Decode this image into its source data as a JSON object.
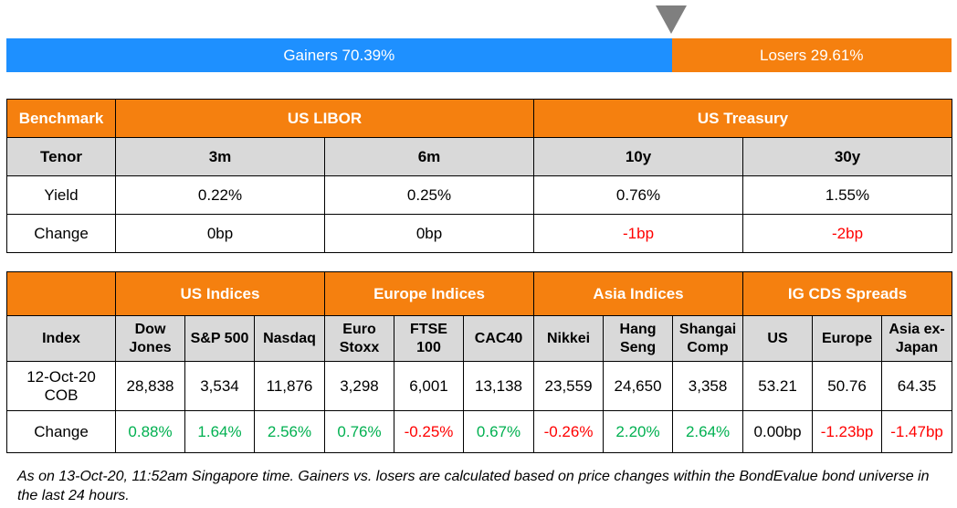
{
  "breadth": {
    "gainers_label": "Gainers 70.39%",
    "losers_label": "Losers 29.61%",
    "gainers_share": 0.7039,
    "colors": {
      "gainers": "#1e90ff",
      "losers": "#f5800f",
      "marker": "#7f7f7f"
    },
    "marker_icon": "triangle-down-icon"
  },
  "rates": {
    "header": {
      "benchmark": "Benchmark",
      "libor": "US LIBOR",
      "treasury": "US Treasury"
    },
    "tenor_label": "Tenor",
    "tenors": [
      "3m",
      "6m",
      "10y",
      "30y"
    ],
    "yield_label": "Yield",
    "yields": [
      "0.22%",
      "0.25%",
      "0.76%",
      "1.55%"
    ],
    "change_label": "Change",
    "changes": [
      "0bp",
      "0bp",
      "-1bp",
      "-2bp"
    ]
  },
  "indices": {
    "groups": [
      "US Indices",
      "Europe Indices",
      "Asia Indices",
      "IG CDS Spreads"
    ],
    "index_label": "Index",
    "names": [
      "Dow Jones",
      "S&P 500",
      "Nasdaq",
      "Euro Stoxx",
      "FTSE 100",
      "CAC40",
      "Nikkei",
      "Hang Seng",
      "Shangai Comp",
      "US",
      "Europe",
      "Asia ex-Japan"
    ],
    "date_label": "12-Oct-20 COB",
    "values": [
      "28,838",
      "3,534",
      "11,876",
      "3,298",
      "6,001",
      "13,138",
      "23,559",
      "24,650",
      "3,358",
      "53.21",
      "50.76",
      "64.35"
    ],
    "change_label": "Change",
    "changes": [
      "0.88%",
      "1.64%",
      "2.56%",
      "0.76%",
      "-0.25%",
      "0.67%",
      "-0.26%",
      "2.20%",
      "2.64%",
      "0.00bp",
      "-1.23bp",
      "-1.47bp"
    ]
  },
  "colors": {
    "header_orange": "#f5800f",
    "header_grey": "#d9d9d9",
    "positive": "#00b050",
    "negative": "#ff0000"
  },
  "footnote": "As on 13-Oct-20, 11:52am Singapore time. Gainers vs. losers are calculated based on price changes within the BondEvalue bond universe in the last 24 hours."
}
